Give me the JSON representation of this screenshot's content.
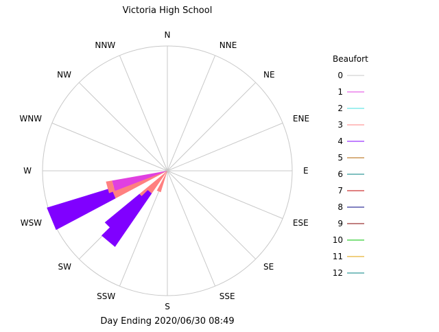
{
  "chart_data": {
    "type": "wind-rose",
    "title": "Victoria High School",
    "footer": "Day Ending 2020/06/30 08:49",
    "directions": [
      "N",
      "NNE",
      "NE",
      "ENE",
      "E",
      "ESE",
      "SE",
      "SSE",
      "S",
      "SSW",
      "SW",
      "WSW",
      "W",
      "WNW",
      "NW",
      "NNW"
    ],
    "legend": {
      "title": "Beaufort",
      "levels": [
        {
          "label": "0",
          "color": "#c8c8c8"
        },
        {
          "label": "1",
          "color": "#e040e0"
        },
        {
          "label": "2",
          "color": "#40e0e0"
        },
        {
          "label": "3",
          "color": "#ff8080"
        },
        {
          "label": "4",
          "color": "#8000ff"
        },
        {
          "label": "5",
          "color": "#b06000"
        },
        {
          "label": "6",
          "color": "#008080"
        },
        {
          "label": "7",
          "color": "#c00000"
        },
        {
          "label": "8",
          "color": "#000080"
        },
        {
          "label": "9",
          "color": "#800000"
        },
        {
          "label": "10",
          "color": "#00c000"
        },
        {
          "label": "11",
          "color": "#e0a000"
        },
        {
          "label": "12",
          "color": "#008080"
        }
      ]
    },
    "max_radius": 1.0,
    "petals": [
      {
        "direction": "SSW",
        "segments": [
          {
            "level": "3",
            "value": 0.18
          }
        ]
      },
      {
        "direction": "SW",
        "segments": [
          {
            "level": "3",
            "value": 0.29
          },
          {
            "level": "4",
            "value": 0.36
          }
        ]
      },
      {
        "direction": "SW",
        "segments": [
          {
            "level": "3",
            "value": 0.22
          },
          {
            "level": "4",
            "value": 0.52
          }
        ],
        "offset_deg": -5
      },
      {
        "direction": "WSW",
        "segments": [
          {
            "level": "3",
            "value": 0.47
          },
          {
            "level": "4",
            "value": 0.54
          }
        ]
      },
      {
        "direction": "WSW",
        "segments": [
          {
            "level": "1",
            "value": 0.45
          },
          {
            "level": "3",
            "value": 0.05
          }
        ],
        "offset_deg": 7
      }
    ]
  }
}
